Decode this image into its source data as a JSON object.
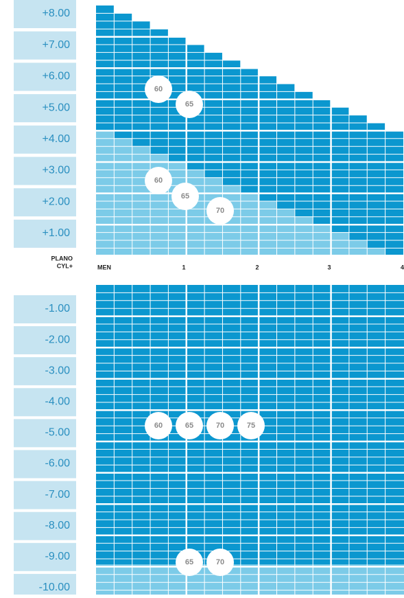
{
  "plus_labels": [
    "+8.00",
    "+7.00",
    "+6.00",
    "+5.00",
    "+4.00",
    "+3.00",
    "+2.00",
    "+1.00"
  ],
  "minus_labels": [
    "-1.00",
    "-2.00",
    "-3.00",
    "-4.00",
    "-5.00",
    "-6.00",
    "-7.00",
    "-8.00",
    "-9.00",
    "-10.00"
  ],
  "plano": "PLANO",
  "cyl": "CYL+",
  "column_labels": [
    "MEN",
    "1",
    "2",
    "3",
    "4"
  ],
  "badges": [
    60,
    65,
    60,
    65,
    70,
    60,
    65,
    70,
    75,
    65,
    70
  ]
}
